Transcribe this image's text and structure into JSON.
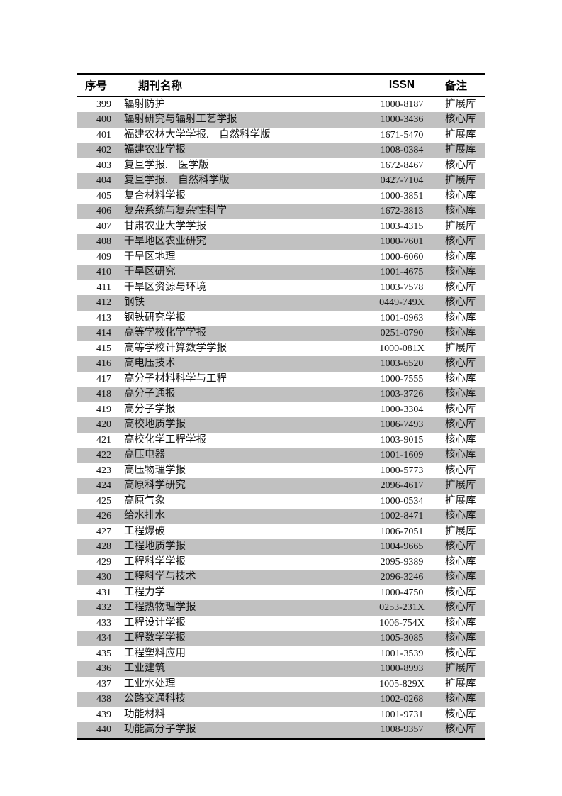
{
  "colors": {
    "row_stripe": "#c1c1c1",
    "rule": "#000000",
    "text": "#141414",
    "background": "#ffffff"
  },
  "table": {
    "columns": {
      "seq": "序号",
      "name": "期刊名称",
      "issn": "ISSN",
      "remark": "备注"
    },
    "rows": [
      {
        "seq": "399",
        "name": "辐射防护",
        "issn": "1000-8187",
        "remark": "扩展库"
      },
      {
        "seq": "400",
        "name": "辐射研究与辐射工艺学报",
        "issn": "1000-3436",
        "remark": "核心库"
      },
      {
        "seq": "401",
        "name": "福建农林大学学报.　自然科学版",
        "issn": "1671-5470",
        "remark": "扩展库"
      },
      {
        "seq": "402",
        "name": "福建农业学报",
        "issn": "1008-0384",
        "remark": "扩展库"
      },
      {
        "seq": "403",
        "name": "复旦学报.　医学版",
        "issn": "1672-8467",
        "remark": "核心库"
      },
      {
        "seq": "404",
        "name": "复旦学报.　自然科学版",
        "issn": "0427-7104",
        "remark": "扩展库"
      },
      {
        "seq": "405",
        "name": "复合材料学报",
        "issn": "1000-3851",
        "remark": "核心库"
      },
      {
        "seq": "406",
        "name": "复杂系统与复杂性科学",
        "issn": "1672-3813",
        "remark": "核心库"
      },
      {
        "seq": "407",
        "name": "甘肃农业大学学报",
        "issn": "1003-4315",
        "remark": "扩展库"
      },
      {
        "seq": "408",
        "name": "干旱地区农业研究",
        "issn": "1000-7601",
        "remark": "核心库"
      },
      {
        "seq": "409",
        "name": "干旱区地理",
        "issn": "1000-6060",
        "remark": "核心库"
      },
      {
        "seq": "410",
        "name": "干旱区研究",
        "issn": "1001-4675",
        "remark": "核心库"
      },
      {
        "seq": "411",
        "name": "干旱区资源与环境",
        "issn": "1003-7578",
        "remark": "核心库"
      },
      {
        "seq": "412",
        "name": "钢铁",
        "issn": "0449-749X",
        "remark": "核心库"
      },
      {
        "seq": "413",
        "name": "钢铁研究学报",
        "issn": "1001-0963",
        "remark": "核心库"
      },
      {
        "seq": "414",
        "name": "高等学校化学学报",
        "issn": "0251-0790",
        "remark": "核心库"
      },
      {
        "seq": "415",
        "name": "高等学校计算数学学报",
        "issn": "1000-081X",
        "remark": "扩展库"
      },
      {
        "seq": "416",
        "name": "高电压技术",
        "issn": "1003-6520",
        "remark": "核心库"
      },
      {
        "seq": "417",
        "name": "高分子材料科学与工程",
        "issn": "1000-7555",
        "remark": "核心库"
      },
      {
        "seq": "418",
        "name": "高分子通报",
        "issn": "1003-3726",
        "remark": "核心库"
      },
      {
        "seq": "419",
        "name": "高分子学报",
        "issn": "1000-3304",
        "remark": "核心库"
      },
      {
        "seq": "420",
        "name": "高校地质学报",
        "issn": "1006-7493",
        "remark": "核心库"
      },
      {
        "seq": "421",
        "name": "高校化学工程学报",
        "issn": "1003-9015",
        "remark": "核心库"
      },
      {
        "seq": "422",
        "name": "高压电器",
        "issn": "1001-1609",
        "remark": "核心库"
      },
      {
        "seq": "423",
        "name": "高压物理学报",
        "issn": "1000-5773",
        "remark": "核心库"
      },
      {
        "seq": "424",
        "name": "高原科学研究",
        "issn": "2096-4617",
        "remark": "扩展库"
      },
      {
        "seq": "425",
        "name": "高原气象",
        "issn": "1000-0534",
        "remark": "扩展库"
      },
      {
        "seq": "426",
        "name": "给水排水",
        "issn": "1002-8471",
        "remark": "核心库"
      },
      {
        "seq": "427",
        "name": "工程爆破",
        "issn": "1006-7051",
        "remark": "扩展库"
      },
      {
        "seq": "428",
        "name": "工程地质学报",
        "issn": "1004-9665",
        "remark": "核心库"
      },
      {
        "seq": "429",
        "name": "工程科学学报",
        "issn": "2095-9389",
        "remark": "核心库"
      },
      {
        "seq": "430",
        "name": "工程科学与技术",
        "issn": "2096-3246",
        "remark": "核心库"
      },
      {
        "seq": "431",
        "name": "工程力学",
        "issn": "1000-4750",
        "remark": "核心库"
      },
      {
        "seq": "432",
        "name": "工程热物理学报",
        "issn": "0253-231X",
        "remark": "核心库"
      },
      {
        "seq": "433",
        "name": "工程设计学报",
        "issn": "1006-754X",
        "remark": "核心库"
      },
      {
        "seq": "434",
        "name": "工程数学学报",
        "issn": "1005-3085",
        "remark": "核心库"
      },
      {
        "seq": "435",
        "name": "工程塑料应用",
        "issn": "1001-3539",
        "remark": "核心库"
      },
      {
        "seq": "436",
        "name": "工业建筑",
        "issn": "1000-8993",
        "remark": "扩展库"
      },
      {
        "seq": "437",
        "name": "工业水处理",
        "issn": "1005-829X",
        "remark": "扩展库"
      },
      {
        "seq": "438",
        "name": "公路交通科技",
        "issn": "1002-0268",
        "remark": "核心库"
      },
      {
        "seq": "439",
        "name": "功能材料",
        "issn": "1001-9731",
        "remark": "核心库"
      },
      {
        "seq": "440",
        "name": "功能高分子学报",
        "issn": "1008-9357",
        "remark": "核心库"
      }
    ]
  }
}
